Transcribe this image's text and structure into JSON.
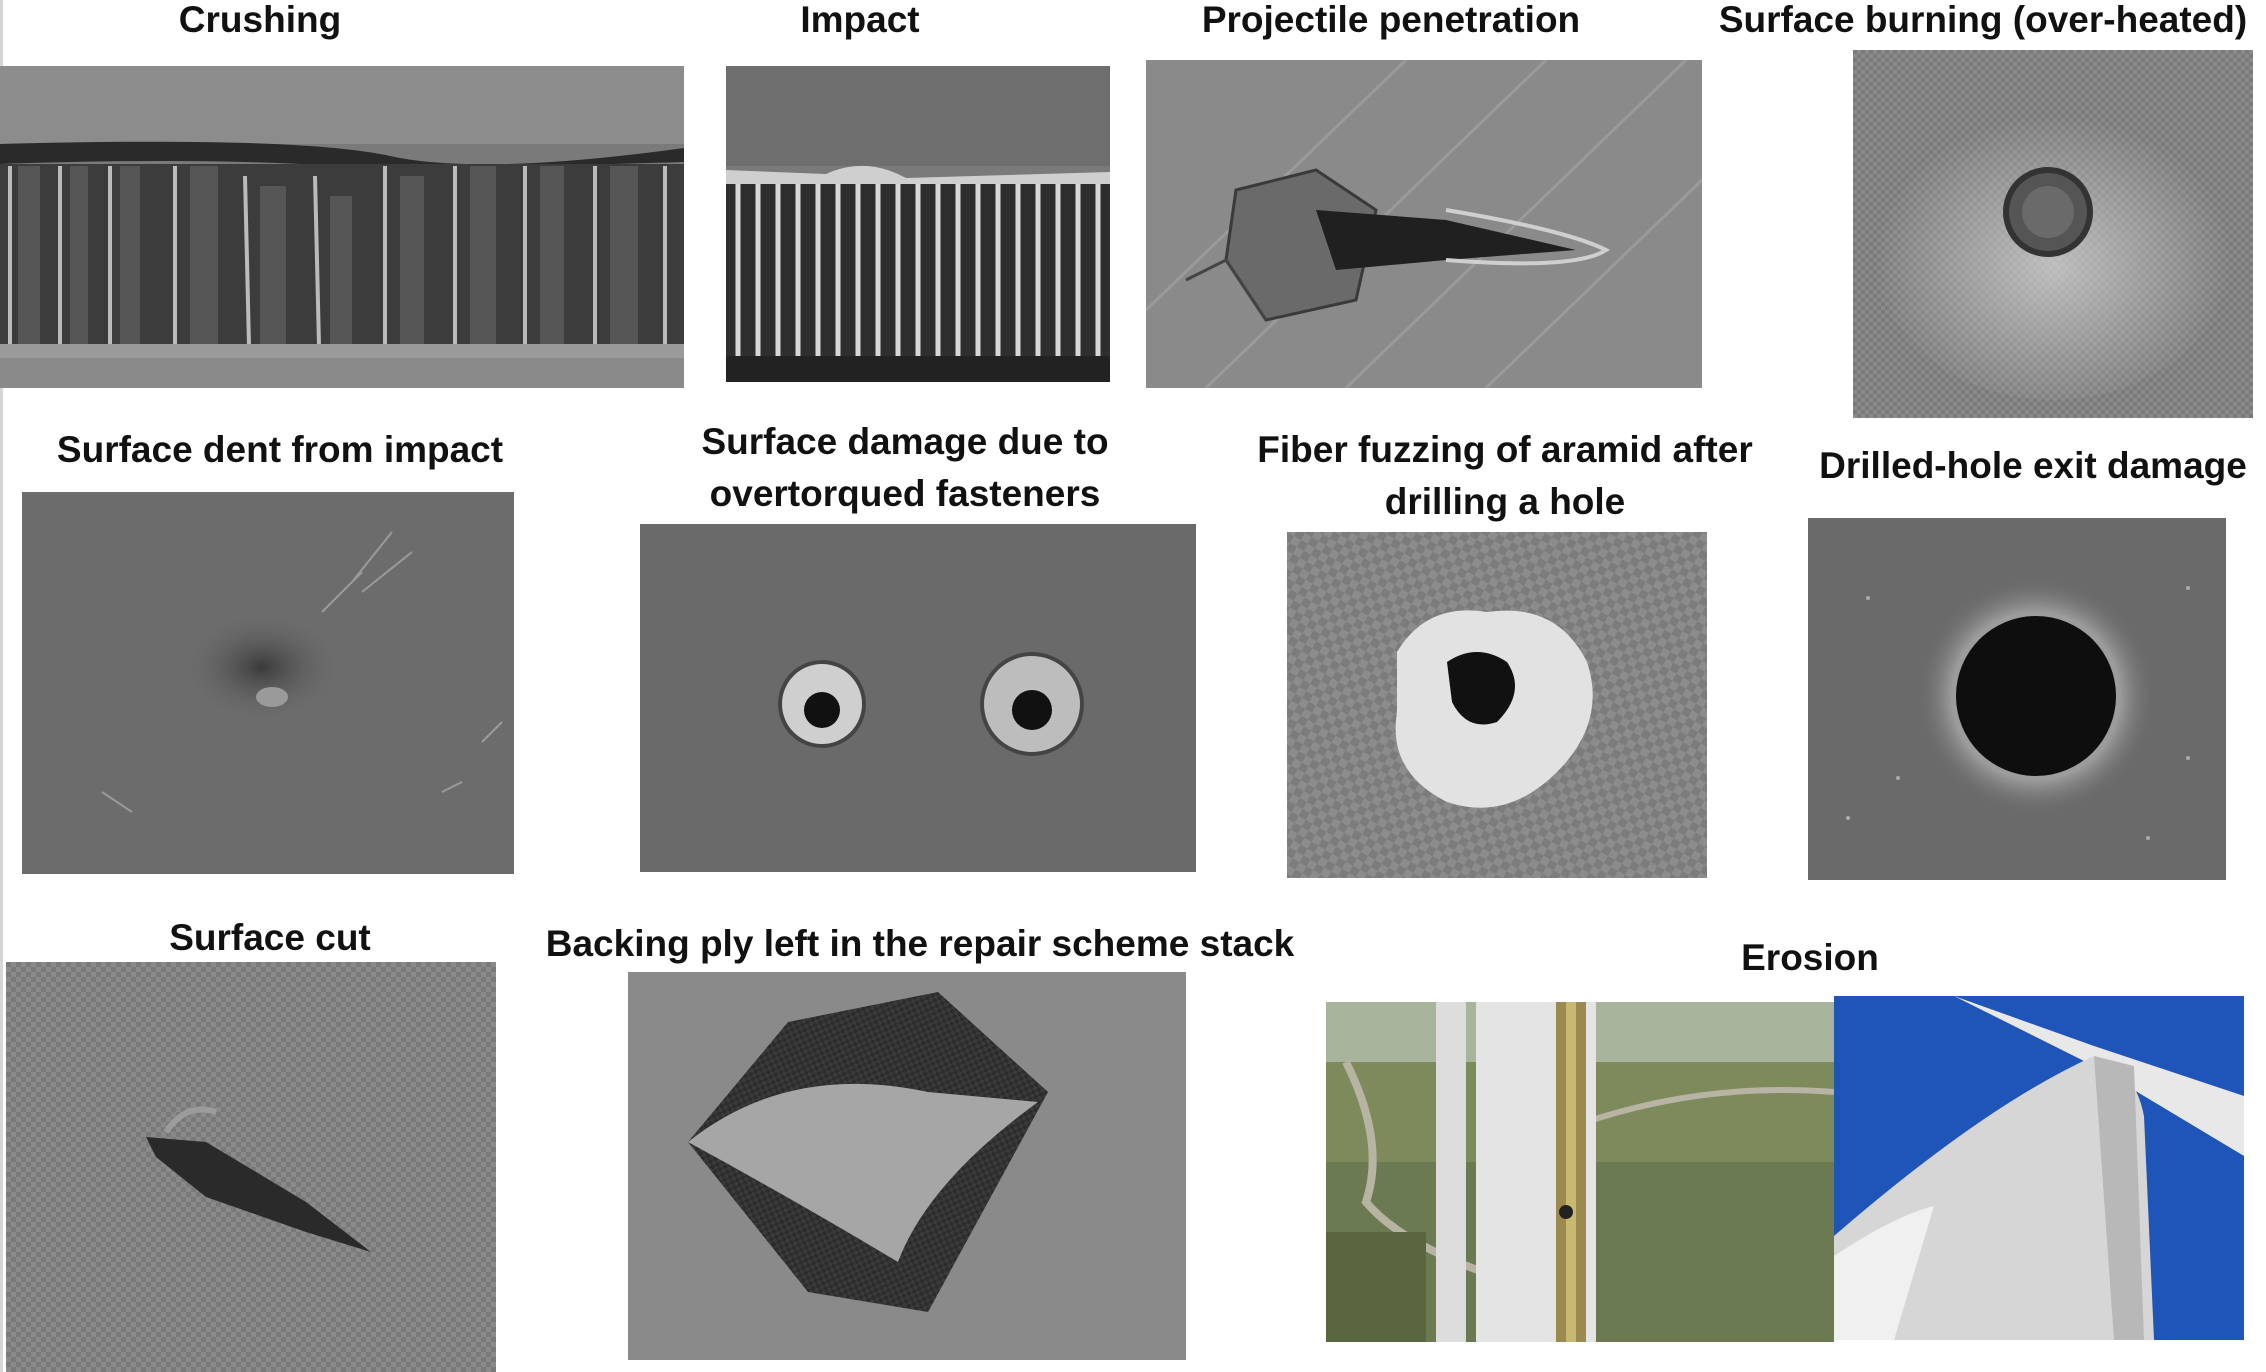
{
  "captions": {
    "crushing": "Crushing",
    "impact": "Impact",
    "projectile": "Projectile penetration",
    "burning": "Surface burning (over-heated)",
    "dent": "Surface dent from impact",
    "fasteners_1": "Surface damage due to",
    "fasteners_2": "overtorqued fasteners",
    "fuzzing_1": "Fiber fuzzing of aramid after",
    "fuzzing_2": "drilling a hole",
    "drilled": "Drilled-hole exit damage",
    "cut": "Surface cut",
    "backing": "Backing ply left in the repair scheme stack",
    "erosion": "Erosion"
  }
}
